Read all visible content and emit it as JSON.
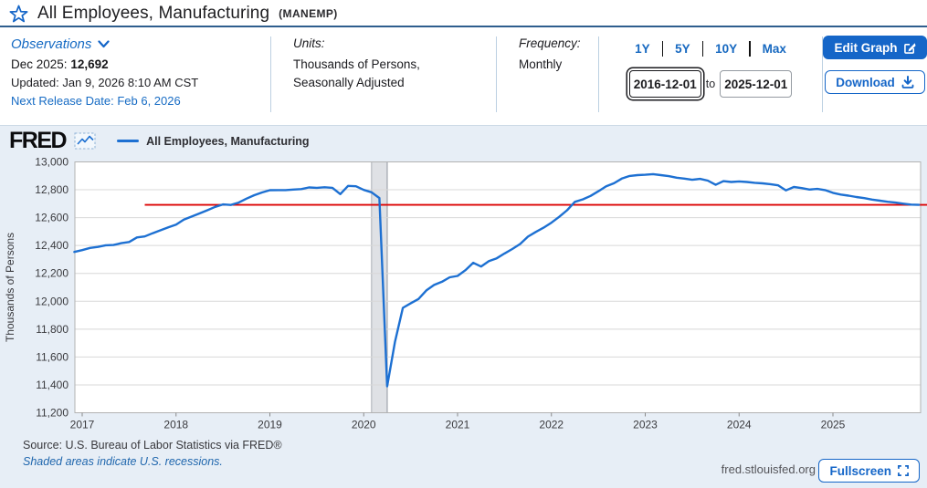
{
  "header": {
    "title": "All Employees, Manufacturing",
    "ticker": "(MANEMP)",
    "observations": {
      "label": "Observations",
      "latest_period": "Dec 2025:",
      "latest_value": "12,692",
      "updated": "Updated: Jan 9, 2026 8:10 AM CST",
      "next_release": "Next Release Date: Feb 6, 2026"
    },
    "units": {
      "label": "Units:",
      "line1": "Thousands of Persons,",
      "line2": "Seasonally Adjusted"
    },
    "frequency": {
      "label": "Frequency:",
      "value": "Monthly"
    },
    "range": {
      "presets": [
        "1Y",
        "5Y",
        "10Y",
        "Max"
      ],
      "from_value": "2016-12-01",
      "to_label": "to",
      "to_value": "2025-12-01"
    },
    "actions": {
      "edit": "Edit Graph",
      "download": "Download"
    }
  },
  "graph": {
    "logo": "FRED",
    "legend": "All Employees, Manufacturing",
    "source": "Source: U.S. Bureau of Labor Statistics via FRED®",
    "recession_note": "Shaded areas indicate U.S. recessions.",
    "site": "fred.stlouisfed.org",
    "fullscreen": "Fullscreen"
  },
  "colors": {
    "accent_blue": "#1566c8",
    "series_blue": "#1d70d2",
    "latest_line_red": "#dd0404",
    "panel_bg": "#e7eef6",
    "grid": "#d8d8d8",
    "plot_border": "#b2b2b2",
    "recession_fill": "#dfe1e5",
    "recession_edge": "#aaaeb6",
    "axis_text": "#3a3a3e"
  },
  "chart_data": {
    "type": "line",
    "title": "All Employees, Manufacturing (MANEMP)",
    "ylabel": "Thousands of Persons",
    "ylim": [
      11200,
      13000
    ],
    "ytick_step": 200,
    "x_year_ticks": [
      2017,
      2018,
      2019,
      2020,
      2021,
      2022,
      2023,
      2024,
      2025
    ],
    "start": {
      "year": 2016,
      "month": 12
    },
    "frequency": "monthly",
    "grid": "horizontal",
    "legend_position": "top-left",
    "series": [
      {
        "name": "All Employees, Manufacturing",
        "values": [
          12354,
          12367,
          12383,
          12390,
          12402,
          12404,
          12417,
          12425,
          12458,
          12465,
          12488,
          12509,
          12530,
          12550,
          12586,
          12608,
          12630,
          12653,
          12677,
          12695,
          12691,
          12708,
          12736,
          12761,
          12781,
          12797,
          12798,
          12798,
          12802,
          12805,
          12817,
          12814,
          12818,
          12814,
          12769,
          12828,
          12825,
          12799,
          12782,
          12741,
          11390,
          11710,
          11953,
          11985,
          12016,
          12078,
          12117,
          12140,
          12172,
          12182,
          12223,
          12276,
          12249,
          12288,
          12308,
          12343,
          12375,
          12411,
          12464,
          12497,
          12528,
          12564,
          12606,
          12653,
          12713,
          12731,
          12756,
          12789,
          12825,
          12847,
          12880,
          12899,
          12905,
          12908,
          12912,
          12905,
          12898,
          12887,
          12880,
          12872,
          12878,
          12866,
          12836,
          12862,
          12856,
          12860,
          12856,
          12850,
          12846,
          12840,
          12832,
          12796,
          12820,
          12812,
          12802,
          12806,
          12798,
          12778,
          12766,
          12758,
          12748,
          12740,
          12730,
          12722,
          12714,
          12708,
          12700,
          12694,
          12692
        ]
      }
    ],
    "latest_value_line": {
      "value": 12692,
      "from": "2017-09"
    },
    "recession_bands": [
      {
        "from": "2020-02",
        "to": "2020-04"
      }
    ]
  }
}
